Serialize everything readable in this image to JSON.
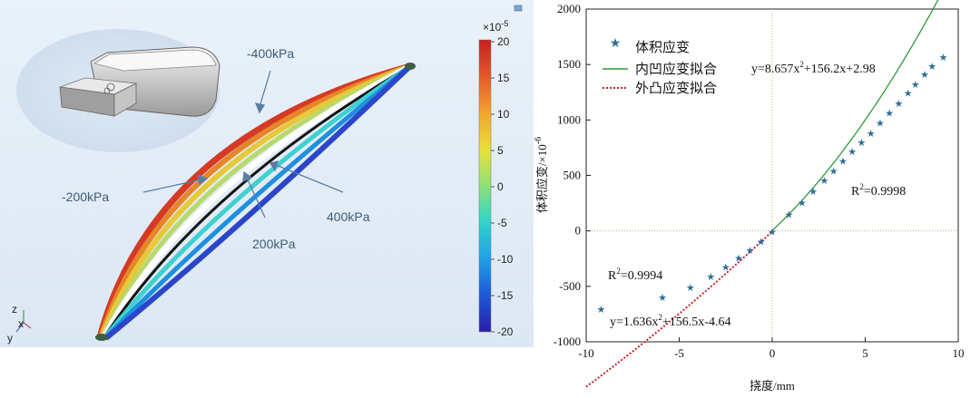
{
  "simulation": {
    "labels": {
      "neg400": "-400kPa",
      "neg200": "-200kPa",
      "pos200": "200kPa",
      "pos400": "400kPa"
    },
    "colorbar": {
      "exponent_base": "×10",
      "exponent_power": "-5",
      "ticks": [
        "20",
        "15",
        "10",
        "5",
        "0",
        "-5",
        "-10",
        "-15",
        "-20"
      ],
      "range": [
        -20,
        20
      ],
      "colors": [
        "#2a1fa8",
        "#1f55d6",
        "#1fa0e6",
        "#2fd6c8",
        "#8fe07a",
        "#e6e23a",
        "#f2a52a",
        "#e4552a",
        "#c8201e"
      ]
    },
    "axes_triad": {
      "z": "z",
      "x": "x",
      "y": "y"
    }
  },
  "chart_data": {
    "type": "scatter",
    "xlabel": "挠度/mm",
    "ylabel_main": "体积应变/×10",
    "ylabel_exp": "-6",
    "xlim": [
      -10,
      10
    ],
    "ylim": [
      -1000,
      2000
    ],
    "xticks": [
      -10,
      -5,
      0,
      5,
      10
    ],
    "yticks": [
      -1000,
      -500,
      0,
      500,
      1000,
      1500,
      2000
    ],
    "legend": {
      "scatter": "体积应变",
      "fit_concave": "内凹应变拟合",
      "fit_convex": "外凸应变拟合"
    },
    "points": {
      "x": [
        -9.2,
        -5.9,
        -4.4,
        -3.3,
        -2.5,
        -1.8,
        -1.2,
        -0.6,
        0,
        0.9,
        1.6,
        2.2,
        2.8,
        3.3,
        3.8,
        4.3,
        4.8,
        5.3,
        5.8,
        6.3,
        6.8,
        7.3,
        7.7,
        8.2,
        8.6,
        9.2
      ],
      "y": [
        -705,
        -598,
        -510,
        -410,
        -325,
        -245,
        -175,
        -95,
        -5,
        150,
        255,
        355,
        455,
        540,
        630,
        715,
        800,
        880,
        975,
        1065,
        1150,
        1245,
        1320,
        1410,
        1485,
        1565
      ]
    },
    "fit_concave": {
      "equation": "y=8.657x",
      "equation_rest": "+156.2x+2.98",
      "r2_label": "R",
      "r2_value": "=0.9998",
      "domain": [
        0,
        10
      ],
      "coef": [
        8.657,
        156.2,
        2.98
      ],
      "color": "#2e9a3a"
    },
    "fit_convex": {
      "equation": "y=1.636x",
      "equation_rest": "+156.5x-4.64",
      "r2_label": "R",
      "r2_value": "=0.9994",
      "domain": [
        -10,
        0
      ],
      "coef": [
        1.636,
        156.5,
        -4.64
      ],
      "color": "#c8202a"
    },
    "marker_color": "#2e6f95",
    "refline_color": "#c8b45a",
    "sup2": "2"
  }
}
